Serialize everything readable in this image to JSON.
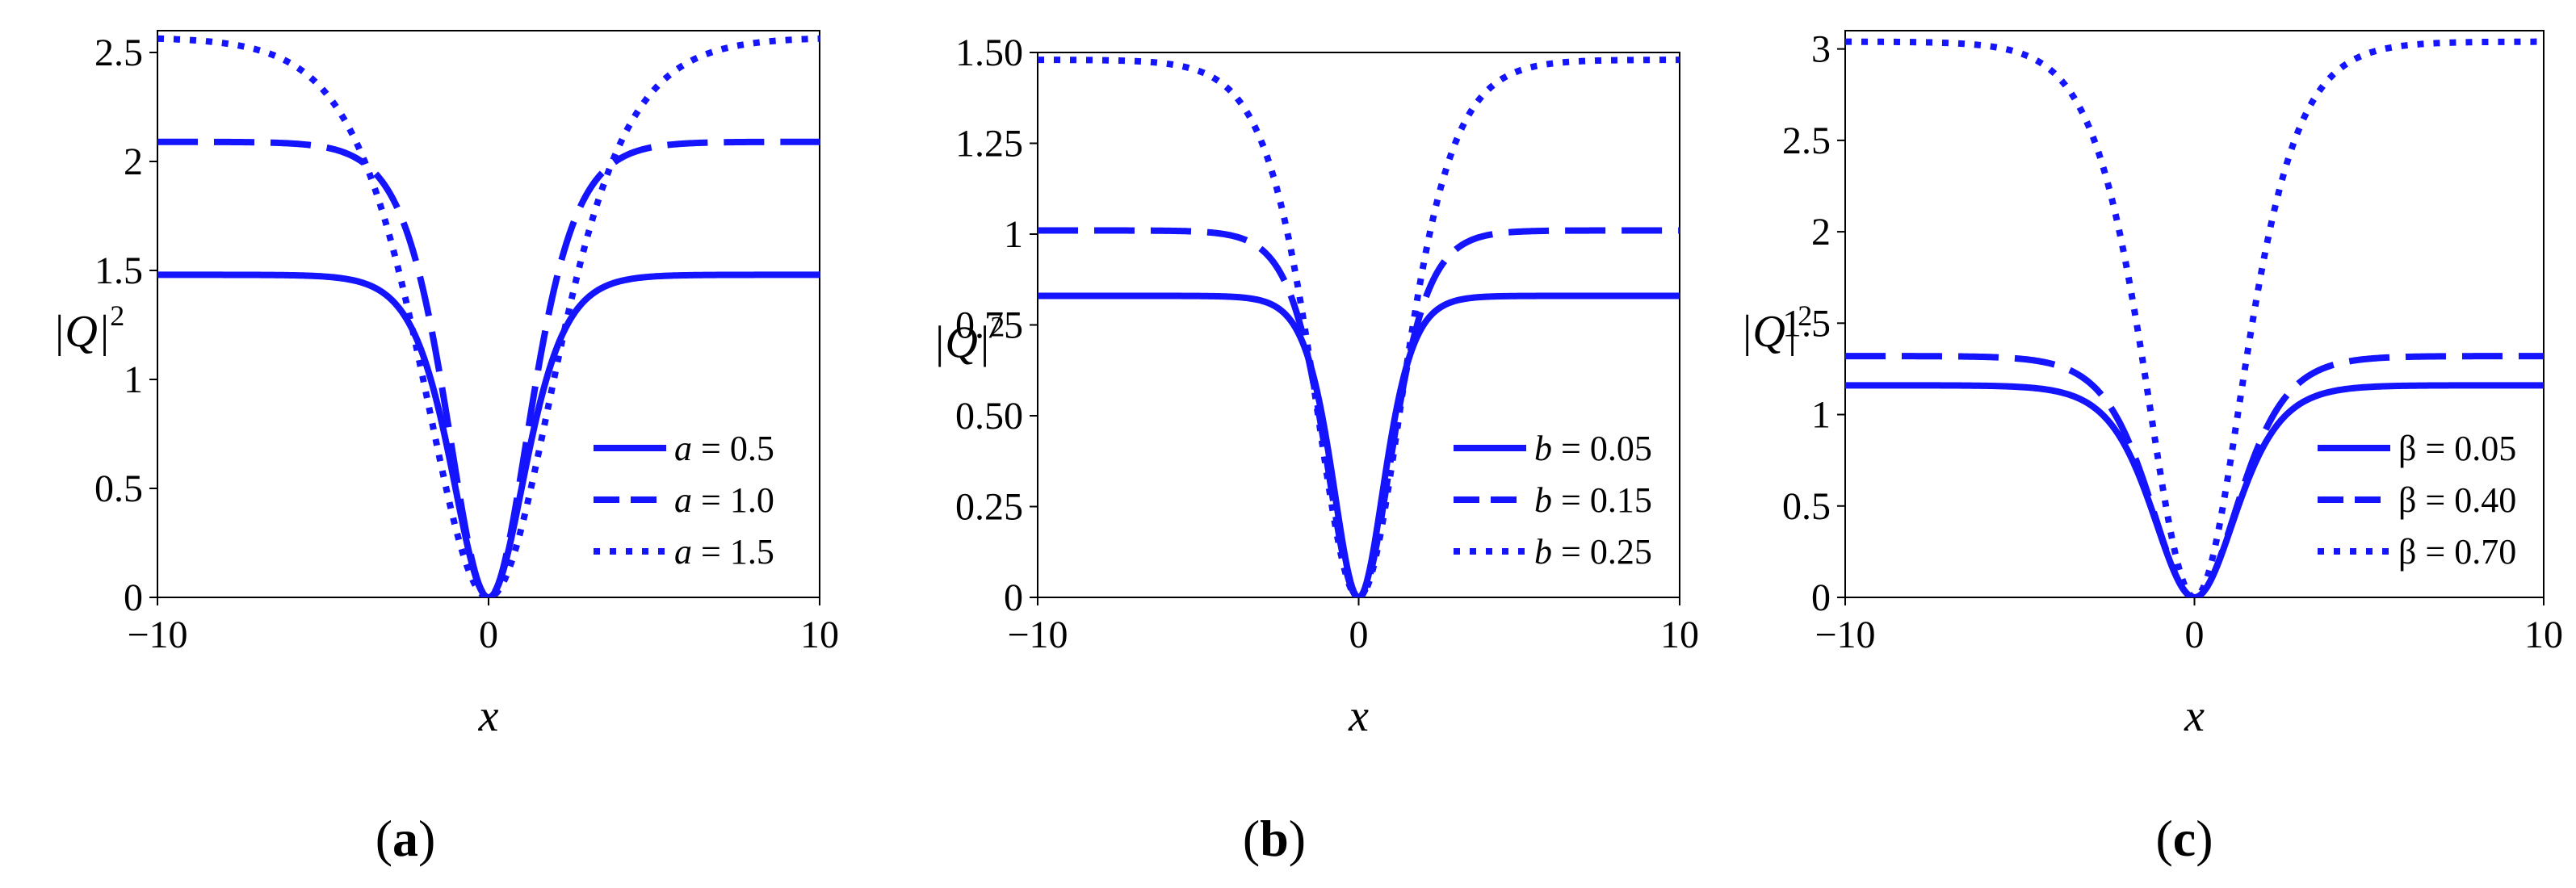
{
  "chart_data": [
    {
      "type": "line",
      "panel_label": {
        "open": "(",
        "letter": "a",
        "close": ")"
      },
      "xlabel": "x",
      "ylabel": {
        "main": "|Q|",
        "sup": "2"
      },
      "xlim": [
        -10,
        10
      ],
      "ylim": [
        0,
        2.6
      ],
      "xticks": [
        {
          "v": -10,
          "t": "−10"
        },
        {
          "v": 0,
          "t": "0"
        },
        {
          "v": 10,
          "t": "10"
        }
      ],
      "yticks": [
        {
          "v": 0,
          "t": "0"
        },
        {
          "v": 0.5,
          "t": "0.5"
        },
        {
          "v": 1,
          "t": "1"
        },
        {
          "v": 1.5,
          "t": "1.5"
        },
        {
          "v": 2,
          "t": "2"
        },
        {
          "v": 2.5,
          "t": "2.5"
        }
      ],
      "legend_position": "bottom-right",
      "series": [
        {
          "name": {
            "var": "a",
            "rest": " = 0.5"
          },
          "dash": "solid",
          "plateau": 1.48,
          "width": 1.5
        },
        {
          "name": {
            "var": "a",
            "rest": " = 1.0"
          },
          "dash": "dashed",
          "plateau": 2.09,
          "width": 1.7
        },
        {
          "name": {
            "var": "a",
            "rest": " = 1.5"
          },
          "dash": "dotted",
          "plateau": 2.57,
          "width": 2.7
        }
      ]
    },
    {
      "type": "line",
      "panel_label": {
        "open": "(",
        "letter": "b",
        "close": ")"
      },
      "xlabel": "x",
      "ylabel": {
        "main": "|Q|",
        "sup": "2"
      },
      "xlim": [
        -10,
        10
      ],
      "ylim": [
        0,
        1.5
      ],
      "xticks": [
        {
          "v": -10,
          "t": "−10"
        },
        {
          "v": 0,
          "t": "0"
        },
        {
          "v": 10,
          "t": "10"
        }
      ],
      "yticks": [
        {
          "v": 0,
          "t": "0"
        },
        {
          "v": 0.25,
          "t": "0.25"
        },
        {
          "v": 0.5,
          "t": "0.50"
        },
        {
          "v": 0.75,
          "t": "0.75"
        },
        {
          "v": 1,
          "t": "1"
        },
        {
          "v": 1.25,
          "t": "1.25"
        },
        {
          "v": 1.5,
          "t": "1.50"
        }
      ],
      "legend_position": "bottom-right",
      "series": [
        {
          "name": {
            "var": "b",
            "rest": " = 0.05"
          },
          "dash": "solid",
          "plateau": 0.83,
          "width": 1.1
        },
        {
          "name": {
            "var": "b",
            "rest": " = 0.15"
          },
          "dash": "dashed",
          "plateau": 1.01,
          "width": 1.4
        },
        {
          "name": {
            "var": "b",
            "rest": " = 0.25"
          },
          "dash": "dotted",
          "plateau": 1.48,
          "width": 1.9
        }
      ]
    },
    {
      "type": "line",
      "panel_label": {
        "open": "(",
        "letter": "c",
        "close": ")"
      },
      "xlabel": "x",
      "ylabel": {
        "main": "|Q|",
        "sup": "2"
      },
      "xlim": [
        -10,
        10
      ],
      "ylim": [
        0,
        3.1
      ],
      "xticks": [
        {
          "v": -10,
          "t": "−10"
        },
        {
          "v": 0,
          "t": "0"
        },
        {
          "v": 10,
          "t": "10"
        }
      ],
      "yticks": [
        {
          "v": 0,
          "t": "0"
        },
        {
          "v": 0.5,
          "t": "0.5"
        },
        {
          "v": 1,
          "t": "1"
        },
        {
          "v": 1.5,
          "t": "1.5"
        },
        {
          "v": 2,
          "t": "2"
        },
        {
          "v": 2.5,
          "t": "2.5"
        },
        {
          "v": 3,
          "t": "3"
        }
      ],
      "legend_position": "bottom-right",
      "series": [
        {
          "name": {
            "var": "",
            "rest": "β = 0.05"
          },
          "dash": "solid",
          "plateau": 1.16,
          "width": 1.6
        },
        {
          "name": {
            "var": "",
            "rest": "β = 0.40"
          },
          "dash": "dashed",
          "plateau": 1.32,
          "width": 1.7
        },
        {
          "name": {
            "var": "",
            "rest": "β = 0.70"
          },
          "dash": "dotted",
          "plateau": 3.04,
          "width": 1.9
        }
      ]
    }
  ],
  "colors": {
    "line": "#1414ff",
    "axis": "#000000"
  }
}
